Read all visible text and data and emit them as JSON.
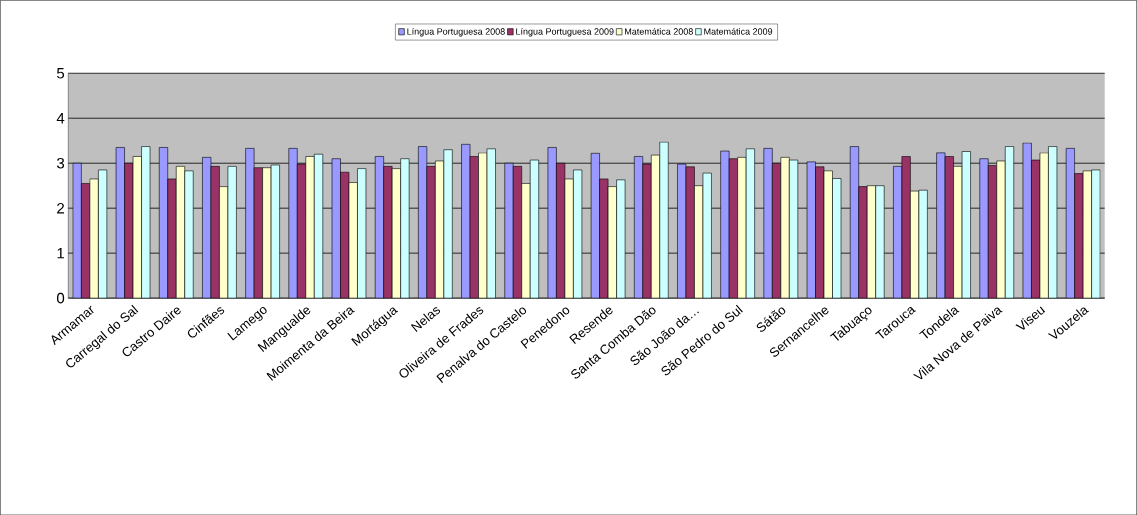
{
  "chart_data": {
    "type": "bar",
    "categories": [
      "Armamar",
      "Carregal do Sal",
      "Castro Daire",
      "Cinfães",
      "Lamego",
      "Mangualde",
      "Moimenta da Beira",
      "Mortágua",
      "Nelas",
      "Oliveira de Frades",
      "Penalva do Castelo",
      "Penedono",
      "Resende",
      "Santa Comba Dão",
      "São João da…",
      "São Pedro do Sul",
      "Sátão",
      "Sernancelhe",
      "Tabuaço",
      "Tarouca",
      "Tondela",
      "Vila Nova de Paiva",
      "Viseu",
      "Vouzela"
    ],
    "series": [
      {
        "name": "Língua Portuguesa 2008",
        "color": "#9999ff",
        "values": [
          3.0,
          3.35,
          3.35,
          3.13,
          3.33,
          3.33,
          3.1,
          3.15,
          3.37,
          3.42,
          3.0,
          3.35,
          3.22,
          3.15,
          2.98,
          3.27,
          3.33,
          3.03,
          3.37,
          2.93,
          3.23,
          3.1,
          3.45,
          3.33
        ]
      },
      {
        "name": "Língua Portuguesa 2009",
        "color": "#993366",
        "values": [
          2.55,
          3.0,
          2.65,
          2.93,
          2.9,
          2.98,
          2.8,
          2.93,
          2.93,
          3.15,
          2.93,
          3.0,
          2.65,
          2.98,
          2.92,
          3.1,
          3.0,
          2.92,
          2.48,
          3.15,
          3.15,
          2.95,
          3.07,
          2.77
        ]
      },
      {
        "name": "Matemática 2008",
        "color": "#ffffcc",
        "values": [
          2.65,
          3.15,
          2.93,
          2.48,
          2.9,
          3.15,
          2.57,
          2.88,
          3.05,
          3.23,
          2.55,
          2.65,
          2.48,
          3.18,
          2.5,
          3.13,
          3.13,
          2.83,
          2.5,
          2.38,
          2.93,
          3.05,
          3.23,
          2.83
        ]
      },
      {
        "name": "Matemática 2009",
        "color": "#ccffff",
        "values": [
          2.85,
          3.37,
          2.83,
          2.93,
          2.96,
          3.2,
          2.88,
          3.1,
          3.3,
          3.32,
          3.07,
          2.85,
          2.63,
          3.47,
          2.78,
          3.32,
          3.07,
          2.66,
          2.5,
          2.4,
          3.26,
          3.37,
          3.37,
          2.85
        ]
      }
    ],
    "ylim": [
      0,
      5
    ],
    "yticks": [
      0,
      1,
      2,
      3,
      4,
      5
    ],
    "grid": "y",
    "legend": "top"
  }
}
